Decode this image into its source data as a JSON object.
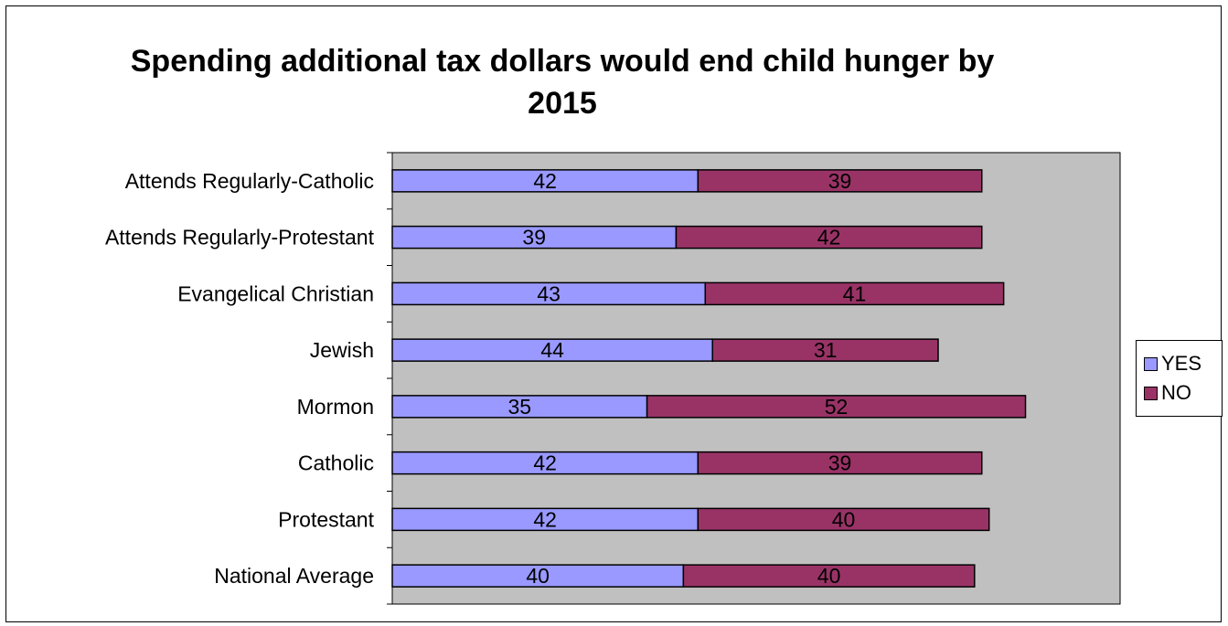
{
  "chart_data": {
    "type": "bar",
    "orientation": "horizontal",
    "stacked": true,
    "title": "Spending additional tax dollars would end child hunger by 2015",
    "categories": [
      "Attends Regularly-Catholic",
      "Attends Regularly-Protestant",
      "Evangelical Christian",
      "Jewish",
      "Mormon",
      "Catholic",
      "Protestant",
      "National Average"
    ],
    "series": [
      {
        "name": "YES",
        "color": "#9999ff",
        "values": [
          42,
          39,
          43,
          44,
          35,
          42,
          42,
          40
        ]
      },
      {
        "name": "NO",
        "color": "#993366",
        "values": [
          39,
          42,
          41,
          31,
          52,
          39,
          40,
          40
        ]
      }
    ],
    "xlim": [
      0,
      100
    ],
    "plot_background": "#c0c0c0",
    "grid": false,
    "data_labels": true,
    "legend": "right"
  }
}
